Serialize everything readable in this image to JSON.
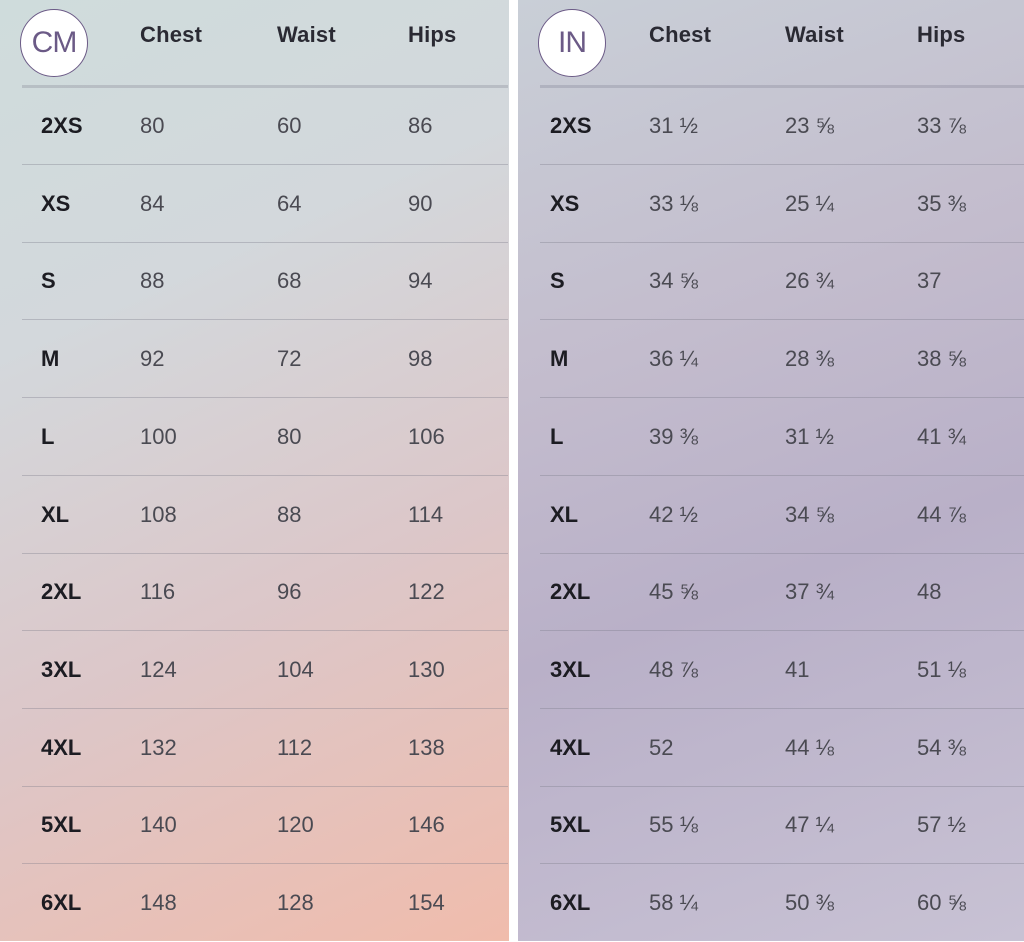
{
  "columns": [
    "Chest",
    "Waist",
    "Hips"
  ],
  "tables": [
    {
      "unit_badge": "CM",
      "rows": [
        {
          "size": "2XS",
          "values": [
            "80",
            "60",
            "86"
          ]
        },
        {
          "size": "XS",
          "values": [
            "84",
            "64",
            "90"
          ]
        },
        {
          "size": "S",
          "values": [
            "88",
            "68",
            "94"
          ]
        },
        {
          "size": "M",
          "values": [
            "92",
            "72",
            "98"
          ]
        },
        {
          "size": "L",
          "values": [
            "100",
            "80",
            "106"
          ]
        },
        {
          "size": "XL",
          "values": [
            "108",
            "88",
            "114"
          ]
        },
        {
          "size": "2XL",
          "values": [
            "116",
            "96",
            "122"
          ]
        },
        {
          "size": "3XL",
          "values": [
            "124",
            "104",
            "130"
          ]
        },
        {
          "size": "4XL",
          "values": [
            "132",
            "112",
            "138"
          ]
        },
        {
          "size": "5XL",
          "values": [
            "140",
            "120",
            "146"
          ]
        },
        {
          "size": "6XL",
          "values": [
            "148",
            "128",
            "154"
          ]
        }
      ]
    },
    {
      "unit_badge": "IN",
      "rows": [
        {
          "size": "2XS",
          "values": [
            "31 ½",
            "23 ⅝",
            "33 ⅞"
          ]
        },
        {
          "size": "XS",
          "values": [
            "33 ⅛",
            "25 ¼",
            "35 ⅜"
          ]
        },
        {
          "size": "S",
          "values": [
            "34 ⅝",
            "26 ¾",
            "37"
          ]
        },
        {
          "size": "M",
          "values": [
            "36 ¼",
            "28 ⅜",
            "38 ⅝"
          ]
        },
        {
          "size": "L",
          "values": [
            "39 ⅜",
            "31 ½",
            "41 ¾"
          ]
        },
        {
          "size": "XL",
          "values": [
            "42 ½",
            "34 ⅝",
            "44 ⅞"
          ]
        },
        {
          "size": "2XL",
          "values": [
            "45 ⅝",
            "37 ¾",
            "48"
          ]
        },
        {
          "size": "3XL",
          "values": [
            "48 ⅞",
            "41",
            "51 ⅛"
          ]
        },
        {
          "size": "4XL",
          "values": [
            "52",
            "44 ⅛",
            "54 ⅜"
          ]
        },
        {
          "size": "5XL",
          "values": [
            "55 ⅛",
            "47 ¼",
            "57 ½"
          ]
        },
        {
          "size": "6XL",
          "values": [
            "58 ¼",
            "50 ⅜",
            "60 ⅝"
          ]
        }
      ]
    }
  ]
}
